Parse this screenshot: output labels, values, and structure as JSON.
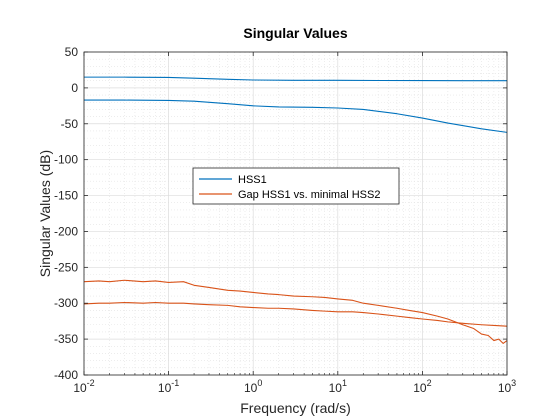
{
  "chart_data": {
    "type": "line",
    "title": "Singular Values",
    "xlabel": "Frequency (rad/s)",
    "ylabel": "Singular Values (dB)",
    "xscale": "log",
    "xlim": [
      0.01,
      1000
    ],
    "ylim": [
      -400,
      50
    ],
    "yticks": [
      50,
      0,
      -50,
      -100,
      -150,
      -200,
      -250,
      -300,
      -350,
      -400
    ],
    "yticklabels": [
      "50",
      "0",
      "-50",
      "-100",
      "-150",
      "-200",
      "-250",
      "-300",
      "-350",
      "-400"
    ],
    "xticks": [
      0.01,
      0.1,
      1,
      10,
      100,
      1000
    ],
    "xticklabels": [
      {
        "base": "10",
        "exp": "-2"
      },
      {
        "base": "10",
        "exp": "-1"
      },
      {
        "base": "10",
        "exp": "0"
      },
      {
        "base": "10",
        "exp": "1"
      },
      {
        "base": "10",
        "exp": "2"
      },
      {
        "base": "10",
        "exp": "3"
      }
    ],
    "grid": true,
    "minor_grid": true,
    "legend_position": "middle-left",
    "legend": [
      {
        "label": "HSS1",
        "color": "#0072BD"
      },
      {
        "label": "Gap HSS1 vs. minimal HSS2",
        "color": "#D95319"
      }
    ],
    "series": [
      {
        "color": "#0072BD",
        "x": [
          0.01,
          0.03,
          0.1,
          0.2,
          0.5,
          1,
          3,
          10,
          30,
          100,
          300,
          1000
        ],
        "y": [
          15,
          15,
          14.5,
          13.5,
          12,
          11,
          10.5,
          10.5,
          10.3,
          10.2,
          10.1,
          10
        ]
      },
      {
        "color": "#0072BD",
        "x": [
          0.01,
          0.03,
          0.1,
          0.2,
          0.5,
          1,
          2,
          5,
          10,
          20,
          50,
          100,
          200,
          500,
          1000
        ],
        "y": [
          -17,
          -17,
          -17.5,
          -18.5,
          -22,
          -25,
          -26.5,
          -27,
          -28,
          -30,
          -36,
          -42,
          -49,
          -57,
          -62
        ]
      },
      {
        "color": "#D95319",
        "x": [
          0.01,
          0.015,
          0.02,
          0.03,
          0.05,
          0.07,
          0.1,
          0.15,
          0.2,
          0.3,
          0.5,
          0.7,
          1,
          1.5,
          2,
          3,
          5,
          7,
          10,
          15,
          20,
          30,
          50,
          70,
          100,
          150,
          200,
          300,
          400,
          500,
          600,
          700,
          800,
          900,
          1000
        ],
        "y": [
          -270,
          -269,
          -270,
          -268,
          -270,
          -269,
          -271,
          -270,
          -275,
          -278,
          -282,
          -283,
          -285,
          -287,
          -288,
          -290,
          -291,
          -292,
          -294,
          -296,
          -300,
          -303,
          -307,
          -310,
          -313,
          -318,
          -322,
          -330,
          -335,
          -343,
          -345,
          -352,
          -350,
          -356,
          -352
        ]
      },
      {
        "color": "#D95319",
        "x": [
          0.01,
          0.015,
          0.02,
          0.03,
          0.05,
          0.07,
          0.1,
          0.15,
          0.2,
          0.3,
          0.5,
          0.7,
          1,
          1.5,
          2,
          3,
          5,
          7,
          10,
          15,
          20,
          30,
          50,
          70,
          100,
          150,
          200,
          300,
          500,
          700,
          1000
        ],
        "y": [
          -301,
          -300,
          -300,
          -299,
          -300,
          -299,
          -300,
          -300,
          -301,
          -302,
          -303,
          -305,
          -306,
          -307,
          -307,
          -308,
          -310,
          -311,
          -312,
          -312,
          -313,
          -315,
          -318,
          -320,
          -322,
          -324,
          -326,
          -328,
          -330,
          -331,
          -332
        ]
      }
    ]
  }
}
